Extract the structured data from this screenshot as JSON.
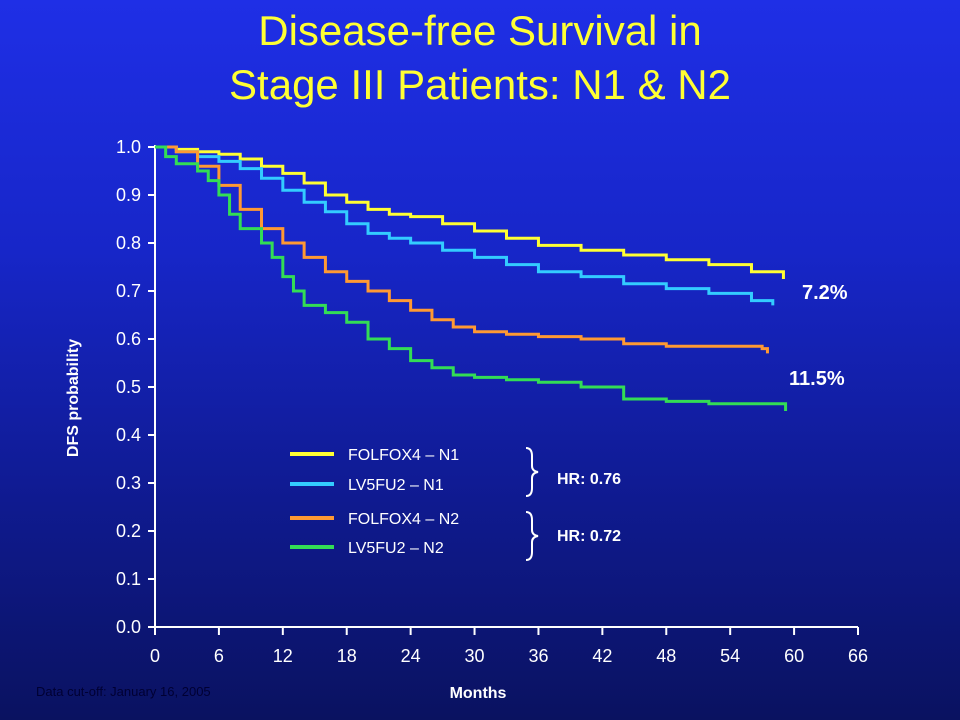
{
  "slide": {
    "title_line1": "Disease-free Survival in",
    "title_line2": "Stage III Patients: N1 & N2",
    "footnote": "Data cut-off: January 16, 2005"
  },
  "colors": {
    "background": "#1726c8",
    "title": "#ffff33",
    "folfox_n1": "#ffff33",
    "lv5fu2_n1": "#33ccff",
    "folfox_n2": "#ff9933",
    "lv5fu2_n2": "#33dd55"
  },
  "chart_data": {
    "type": "line",
    "title": "Disease-free Survival in Stage III Patients: N1 & N2",
    "xlabel": "Months",
    "ylabel": "DFS probability",
    "xlim": [
      0,
      66
    ],
    "ylim": [
      0.0,
      1.0
    ],
    "x_ticks": [
      0,
      6,
      12,
      18,
      24,
      30,
      36,
      42,
      48,
      54,
      60,
      66
    ],
    "y_ticks": [
      "0.0",
      "0.1",
      "0.2",
      "0.3",
      "0.4",
      "0.5",
      "0.6",
      "0.7",
      "0.8",
      "0.9",
      "1.0"
    ],
    "grid": false,
    "legend_position": "lower-center",
    "series": [
      {
        "name": "FOLFOX4 – N1",
        "color_key": "folfox_n1",
        "x": [
          0,
          2,
          4,
          6,
          8,
          10,
          12,
          14,
          16,
          18,
          20,
          22,
          24,
          27,
          30,
          33,
          36,
          40,
          44,
          48,
          52,
          56,
          59
        ],
        "y": [
          1.0,
          0.995,
          0.99,
          0.985,
          0.975,
          0.96,
          0.945,
          0.925,
          0.9,
          0.885,
          0.87,
          0.86,
          0.855,
          0.84,
          0.825,
          0.81,
          0.795,
          0.785,
          0.775,
          0.765,
          0.755,
          0.74,
          0.725
        ]
      },
      {
        "name": "LV5FU2 – N1",
        "color_key": "lv5fu2_n1",
        "x": [
          0,
          2,
          4,
          6,
          8,
          10,
          12,
          14,
          16,
          18,
          20,
          22,
          24,
          27,
          30,
          33,
          36,
          40,
          44,
          48,
          52,
          56,
          58
        ],
        "y": [
          1.0,
          0.99,
          0.98,
          0.97,
          0.955,
          0.935,
          0.91,
          0.885,
          0.865,
          0.84,
          0.82,
          0.81,
          0.8,
          0.785,
          0.77,
          0.755,
          0.74,
          0.73,
          0.715,
          0.705,
          0.695,
          0.68,
          0.67
        ]
      },
      {
        "name": "FOLFOX4 – N2",
        "color_key": "folfox_n2",
        "x": [
          0,
          2,
          4,
          6,
          8,
          10,
          12,
          14,
          16,
          18,
          20,
          22,
          24,
          26,
          28,
          30,
          33,
          36,
          40,
          44,
          48,
          52,
          57,
          57.5
        ],
        "y": [
          1.0,
          0.99,
          0.96,
          0.92,
          0.87,
          0.83,
          0.8,
          0.77,
          0.74,
          0.72,
          0.7,
          0.68,
          0.66,
          0.64,
          0.625,
          0.615,
          0.61,
          0.605,
          0.6,
          0.59,
          0.585,
          0.585,
          0.58,
          0.57
        ]
      },
      {
        "name": "LV5FU2 – N2",
        "color_key": "lv5fu2_n2",
        "x": [
          0,
          1,
          2,
          4,
          5,
          6,
          7,
          8,
          10,
          11,
          12,
          13,
          14,
          16,
          18,
          20,
          22,
          24,
          26,
          28,
          30,
          33,
          36,
          40,
          44,
          48,
          52,
          56,
          59,
          59.2
        ],
        "y": [
          1.0,
          0.98,
          0.965,
          0.95,
          0.93,
          0.9,
          0.86,
          0.83,
          0.8,
          0.77,
          0.73,
          0.7,
          0.67,
          0.655,
          0.635,
          0.6,
          0.58,
          0.555,
          0.54,
          0.525,
          0.52,
          0.515,
          0.51,
          0.5,
          0.475,
          0.47,
          0.465,
          0.465,
          0.465,
          0.45
        ]
      }
    ],
    "legend": [
      {
        "label": "FOLFOX4 – N1",
        "color_key": "folfox_n1"
      },
      {
        "label": "LV5FU2    – N1",
        "color_key": "lv5fu2_n1"
      },
      {
        "label": "FOLFOX4 – N2",
        "color_key": "folfox_n2"
      },
      {
        "label": "LV5FU2    – N2",
        "color_key": "lv5fu2_n2"
      }
    ],
    "annotations": {
      "hr_n1": "HR: 0.76",
      "hr_n2": "HR: 0.72",
      "diff_n1": "7.2%",
      "diff_n2": "11.5%"
    }
  }
}
